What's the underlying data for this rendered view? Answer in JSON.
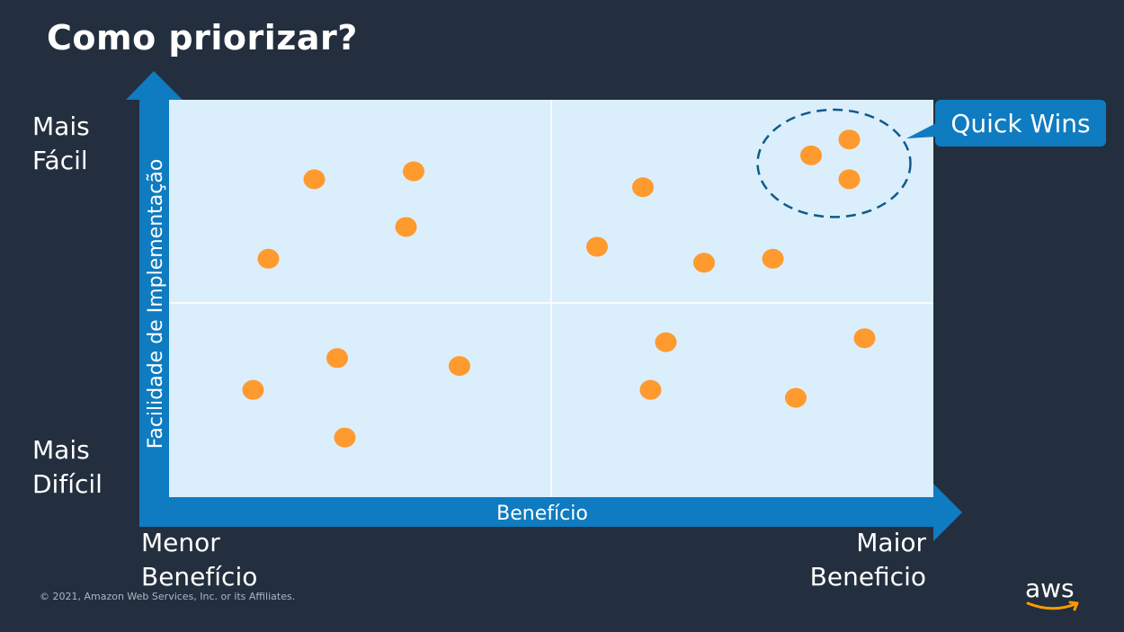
{
  "slide": {
    "title": "Como priorizar?",
    "copyright": "© 2021, Amazon Web Services, Inc. or its Affiliates.",
    "logo_text": "aws"
  },
  "axes": {
    "y_title": "Facilidade de Implementação",
    "x_title": "Benefício",
    "y_top_label": [
      "Mais",
      "Fácil"
    ],
    "y_bottom_label": [
      "Mais",
      "Difícil"
    ],
    "x_left_label": [
      "Menor",
      "Benefício"
    ],
    "x_right_label": [
      "Maior",
      "Beneficio"
    ]
  },
  "callout": {
    "label": "Quick Wins"
  },
  "colors": {
    "background": "#232f3e",
    "plot_bg": "#dbeefb",
    "axis_blue": "#0f7bc0",
    "dot_orange": "#ff9a2e",
    "quadrant_line": "#ffffff"
  },
  "chart_data": {
    "type": "scatter",
    "title": "",
    "xlabel": "Benefício",
    "ylabel": "Facilidade de Implementação",
    "xlim": [
      0,
      100
    ],
    "ylim": [
      0,
      100
    ],
    "grid": "quadrants",
    "points": [
      {
        "x": 19,
        "y": 80
      },
      {
        "x": 32,
        "y": 82
      },
      {
        "x": 31,
        "y": 68
      },
      {
        "x": 13,
        "y": 60
      },
      {
        "x": 22,
        "y": 35
      },
      {
        "x": 38,
        "y": 33
      },
      {
        "x": 11,
        "y": 27
      },
      {
        "x": 23,
        "y": 15
      },
      {
        "x": 62,
        "y": 78
      },
      {
        "x": 56,
        "y": 63
      },
      {
        "x": 70,
        "y": 59
      },
      {
        "x": 79,
        "y": 60
      },
      {
        "x": 65,
        "y": 39
      },
      {
        "x": 91,
        "y": 40
      },
      {
        "x": 63,
        "y": 27
      },
      {
        "x": 82,
        "y": 25
      },
      {
        "x": 84,
        "y": 86
      },
      {
        "x": 89,
        "y": 90
      },
      {
        "x": 89,
        "y": 80
      }
    ],
    "highlight": {
      "label": "Quick Wins",
      "cx": 87,
      "cy": 84,
      "rx": 10,
      "ry": 13.5
    }
  }
}
